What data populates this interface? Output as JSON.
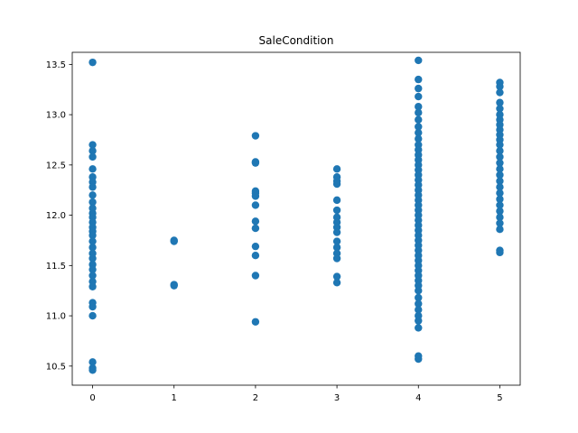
{
  "chart_data": {
    "type": "scatter",
    "title": "SaleCondition",
    "xlabel": "",
    "ylabel": "",
    "xlim": [
      -0.25,
      5.25
    ],
    "ylim": [
      10.31,
      13.62
    ],
    "x_ticks": [
      0,
      1,
      2,
      3,
      4,
      5
    ],
    "y_ticks": [
      10.5,
      11.0,
      11.5,
      12.0,
      12.5,
      13.0,
      13.5
    ],
    "grid": false,
    "marker_color": "#1f77b4",
    "series": [
      {
        "points": [
          [
            0,
            13.52
          ],
          [
            0,
            12.7
          ],
          [
            0,
            12.64
          ],
          [
            0,
            12.58
          ],
          [
            0,
            12.46
          ],
          [
            0,
            12.38
          ],
          [
            0,
            12.33
          ],
          [
            0,
            12.28
          ],
          [
            0,
            12.2
          ],
          [
            0,
            12.13
          ],
          [
            0,
            12.07
          ],
          [
            0,
            12.02
          ],
          [
            0,
            11.98
          ],
          [
            0,
            11.93
          ],
          [
            0,
            11.88
          ],
          [
            0,
            11.84
          ],
          [
            0,
            11.8
          ],
          [
            0,
            11.74
          ],
          [
            0,
            11.68
          ],
          [
            0,
            11.62
          ],
          [
            0,
            11.57
          ],
          [
            0,
            11.51
          ],
          [
            0,
            11.46
          ],
          [
            0,
            11.4
          ],
          [
            0,
            11.34
          ],
          [
            0,
            11.29
          ],
          [
            0,
            11.13
          ],
          [
            0,
            11.09
          ],
          [
            0,
            11.0
          ],
          [
            0,
            10.54
          ],
          [
            0,
            10.48
          ],
          [
            0,
            10.46
          ],
          [
            1,
            11.75
          ],
          [
            1,
            11.74
          ],
          [
            1,
            11.31
          ],
          [
            1,
            11.3
          ],
          [
            2,
            12.79
          ],
          [
            2,
            12.53
          ],
          [
            2,
            12.52
          ],
          [
            2,
            12.24
          ],
          [
            2,
            12.22
          ],
          [
            2,
            12.19
          ],
          [
            2,
            12.1
          ],
          [
            2,
            11.94
          ],
          [
            2,
            11.87
          ],
          [
            2,
            11.69
          ],
          [
            2,
            11.6
          ],
          [
            2,
            11.4
          ],
          [
            2,
            10.94
          ],
          [
            3,
            12.46
          ],
          [
            3,
            12.38
          ],
          [
            3,
            12.34
          ],
          [
            3,
            12.31
          ],
          [
            3,
            12.15
          ],
          [
            3,
            12.05
          ],
          [
            3,
            11.98
          ],
          [
            3,
            11.93
          ],
          [
            3,
            11.88
          ],
          [
            3,
            11.83
          ],
          [
            3,
            11.74
          ],
          [
            3,
            11.68
          ],
          [
            3,
            11.62
          ],
          [
            3,
            11.57
          ],
          [
            3,
            11.39
          ],
          [
            3,
            11.33
          ],
          [
            4,
            13.54
          ],
          [
            4,
            13.35
          ],
          [
            4,
            13.26
          ],
          [
            4,
            13.18
          ],
          [
            4,
            13.08
          ],
          [
            4,
            13.02
          ],
          [
            4,
            12.95
          ],
          [
            4,
            12.88
          ],
          [
            4,
            12.82
          ],
          [
            4,
            12.76
          ],
          [
            4,
            12.7
          ],
          [
            4,
            12.65
          ],
          [
            4,
            12.6
          ],
          [
            4,
            12.55
          ],
          [
            4,
            12.5
          ],
          [
            4,
            12.45
          ],
          [
            4,
            12.4
          ],
          [
            4,
            12.35
          ],
          [
            4,
            12.3
          ],
          [
            4,
            12.25
          ],
          [
            4,
            12.2
          ],
          [
            4,
            12.15
          ],
          [
            4,
            12.1
          ],
          [
            4,
            12.05
          ],
          [
            4,
            12.0
          ],
          [
            4,
            11.95
          ],
          [
            4,
            11.9
          ],
          [
            4,
            11.85
          ],
          [
            4,
            11.8
          ],
          [
            4,
            11.75
          ],
          [
            4,
            11.7
          ],
          [
            4,
            11.65
          ],
          [
            4,
            11.6
          ],
          [
            4,
            11.55
          ],
          [
            4,
            11.5
          ],
          [
            4,
            11.45
          ],
          [
            4,
            11.4
          ],
          [
            4,
            11.35
          ],
          [
            4,
            11.3
          ],
          [
            4,
            11.25
          ],
          [
            4,
            11.18
          ],
          [
            4,
            11.12
          ],
          [
            4,
            11.06
          ],
          [
            4,
            11.0
          ],
          [
            4,
            10.95
          ],
          [
            4,
            10.88
          ],
          [
            4,
            10.6
          ],
          [
            4,
            10.57
          ],
          [
            5,
            13.32
          ],
          [
            5,
            13.28
          ],
          [
            5,
            13.22
          ],
          [
            5,
            13.12
          ],
          [
            5,
            13.06
          ],
          [
            5,
            13.0
          ],
          [
            5,
            12.95
          ],
          [
            5,
            12.9
          ],
          [
            5,
            12.85
          ],
          [
            5,
            12.8
          ],
          [
            5,
            12.75
          ],
          [
            5,
            12.7
          ],
          [
            5,
            12.64
          ],
          [
            5,
            12.58
          ],
          [
            5,
            12.52
          ],
          [
            5,
            12.46
          ],
          [
            5,
            12.4
          ],
          [
            5,
            12.34
          ],
          [
            5,
            12.28
          ],
          [
            5,
            12.22
          ],
          [
            5,
            12.16
          ],
          [
            5,
            12.1
          ],
          [
            5,
            12.04
          ],
          [
            5,
            11.98
          ],
          [
            5,
            11.92
          ],
          [
            5,
            11.86
          ],
          [
            5,
            11.65
          ],
          [
            5,
            11.63
          ]
        ]
      }
    ]
  }
}
